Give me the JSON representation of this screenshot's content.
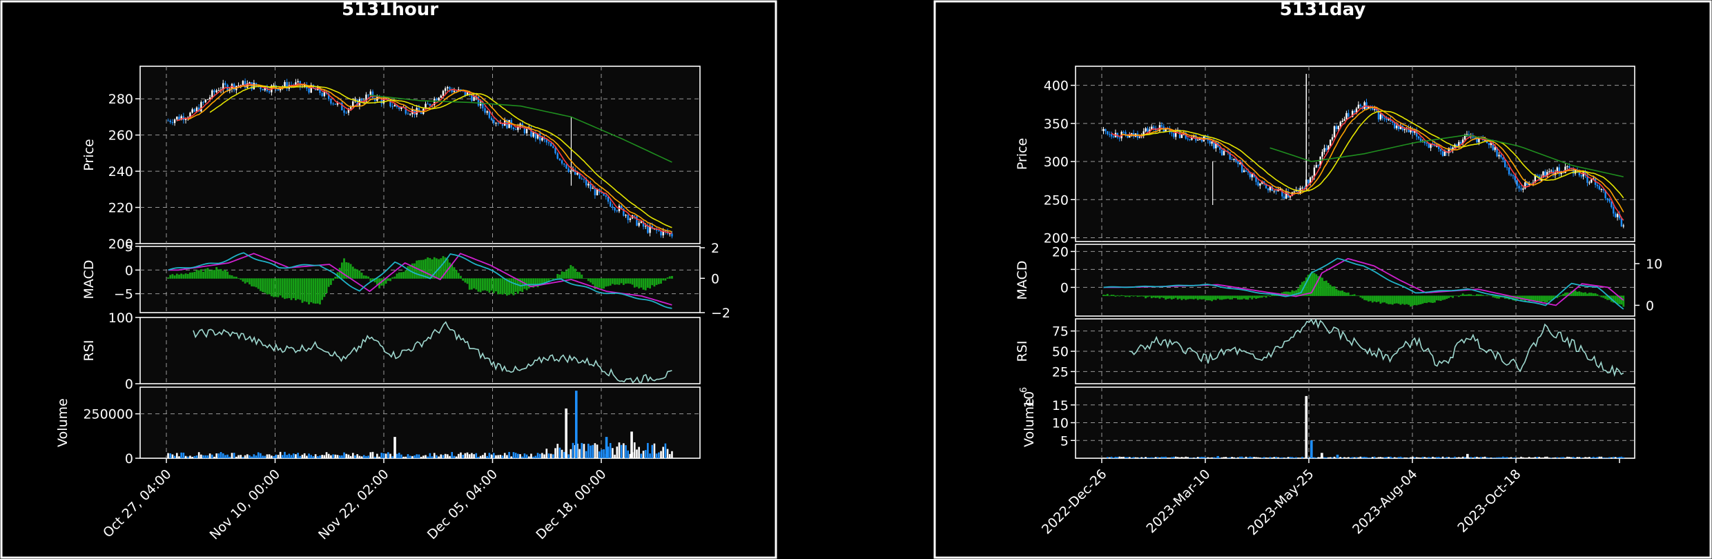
{
  "colors": {
    "background": "#000000",
    "panel_face": "#0a0a0a",
    "frame": "#ffffff",
    "grid": "#9a9a9a",
    "text": "#ffffff",
    "candle_up": "#ffffff",
    "candle_down": "#1e90ff",
    "ma_fast": "#ff3b3b",
    "ma_mid": "#ffa500",
    "ma_slow": "#e6e600",
    "ma_long": "#1f8f1f",
    "macd_line": "#20b2c8",
    "signal_line": "#d020d0",
    "histogram": "#16a016",
    "rsi_line": "#9fd9d0"
  },
  "chart_data": [
    {
      "type": "candlestick",
      "title": "5131hour",
      "ylabels": {
        "price": "Price",
        "macd": "MACD",
        "rsi": "RSI",
        "volume": "Volume"
      },
      "xticks": [
        "Oct 27, 04:00",
        "Nov 10, 00:00",
        "Nov 22, 02:00",
        "Dec 05, 04:00",
        "Dec 18, 00:00"
      ],
      "price_ylim": [
        200,
        298
      ],
      "price_ticks": [
        200,
        220,
        240,
        260,
        280
      ],
      "macd_ylim": [
        -9,
        5
      ],
      "macd_ticks": [
        -5,
        0,
        5
      ],
      "hist_right_ticks": [
        -2,
        0,
        2
      ],
      "rsi_ylim": [
        0,
        100
      ],
      "rsi_ticks": [
        0,
        100
      ],
      "volume_ylim": [
        0,
        400000
      ],
      "volume_ticks": [
        0,
        250000
      ],
      "volume_tick_labels": [
        "0",
        "250000"
      ],
      "close_path": {
        "x": [
          0,
          0.05,
          0.1,
          0.15,
          0.2,
          0.25,
          0.3,
          0.35,
          0.4,
          0.45,
          0.5,
          0.55,
          0.6,
          0.65,
          0.7,
          0.75,
          0.8,
          0.85,
          0.9,
          0.95,
          1.0
        ],
        "y": [
          268,
          272,
          286,
          288,
          286,
          288,
          284,
          274,
          282,
          276,
          272,
          286,
          282,
          268,
          264,
          256,
          240,
          228,
          218,
          208,
          205
        ]
      },
      "long_ma": {
        "x": [
          0.4,
          0.5,
          0.6,
          0.7,
          0.8,
          0.9,
          1.0
        ],
        "y": [
          282,
          279,
          278,
          276,
          270,
          258,
          245
        ]
      },
      "rsi_path": {
        "x": [
          0.05,
          0.1,
          0.15,
          0.2,
          0.25,
          0.3,
          0.35,
          0.4,
          0.45,
          0.5,
          0.55,
          0.6,
          0.65,
          0.7,
          0.75,
          0.8,
          0.85,
          0.9,
          0.95,
          1.0
        ],
        "y": [
          75,
          78,
          72,
          55,
          52,
          58,
          35,
          70,
          42,
          60,
          88,
          55,
          28,
          18,
          40,
          38,
          30,
          5,
          8,
          14
        ]
      },
      "macd_path": {
        "x": [
          0,
          0.1,
          0.15,
          0.22,
          0.3,
          0.38,
          0.45,
          0.52,
          0.56,
          0.62,
          0.7,
          0.78,
          0.85,
          0.92,
          1.0
        ],
        "y": [
          0,
          1.5,
          3.5,
          0.5,
          1.2,
          -4.5,
          1.5,
          -2.0,
          3.5,
          1.0,
          -3.5,
          -2.0,
          -4.5,
          -5.5,
          -8.0
        ]
      },
      "hist_path": {
        "x": [
          0,
          0.1,
          0.2,
          0.3,
          0.35,
          0.42,
          0.5,
          0.55,
          0.6,
          0.68,
          0.75,
          0.8,
          0.85,
          0.9,
          0.95,
          1.0
        ],
        "y": [
          0.2,
          1.0,
          -1.5,
          -2.5,
          1.8,
          -0.8,
          1.8,
          2.0,
          -1.0,
          -1.5,
          -0.5,
          1.2,
          -1.0,
          -0.4,
          -1.0,
          0.2
        ]
      },
      "volume_spikes": [
        {
          "x": 0.79,
          "value": 280000
        },
        {
          "x": 0.81,
          "value": 380000
        },
        {
          "x": 0.45,
          "value": 120000
        },
        {
          "x": 0.87,
          "value": 120000
        },
        {
          "x": 0.92,
          "value": 150000
        }
      ],
      "volume_base": 20000
    },
    {
      "type": "candlestick",
      "title": "5131day",
      "ylabels": {
        "price": "Price",
        "macd": "MACD",
        "rsi": "RSI",
        "volume": "Volume"
      },
      "volume_multiplier": "10",
      "volume_multiplier_exp": "6",
      "xticks": [
        "2022-Dec-26",
        "2023-Mar-10",
        "2023-May-25",
        "2023-Aug-04",
        "2023-Oct-18"
      ],
      "price_ylim": [
        195,
        425
      ],
      "price_ticks": [
        200,
        250,
        300,
        350,
        400
      ],
      "macd_ylim": [
        -16,
        24
      ],
      "macd_ticks": [
        0,
        10,
        20
      ],
      "macd_tick_labels": [
        "0",
        "",
        "20"
      ],
      "hist_right_ticks": [
        0,
        10
      ],
      "rsi_ylim": [
        10,
        90
      ],
      "rsi_ticks": [
        25,
        50,
        75
      ],
      "volume_ylim": [
        0,
        20
      ],
      "volume_ticks": [
        5,
        10,
        15
      ],
      "close_path": {
        "x": [
          0,
          0.05,
          0.1,
          0.15,
          0.2,
          0.25,
          0.3,
          0.35,
          0.38,
          0.4,
          0.45,
          0.5,
          0.55,
          0.6,
          0.65,
          0.7,
          0.75,
          0.8,
          0.85,
          0.9,
          0.95,
          1.0
        ],
        "y": [
          340,
          332,
          345,
          335,
          330,
          300,
          270,
          255,
          262,
          280,
          350,
          375,
          350,
          335,
          310,
          335,
          320,
          265,
          285,
          290,
          270,
          215
        ]
      },
      "long_ma": {
        "x": [
          0.32,
          0.4,
          0.5,
          0.6,
          0.7,
          0.8,
          0.9,
          1.0
        ],
        "y": [
          318,
          300,
          310,
          325,
          335,
          320,
          295,
          280
        ]
      },
      "rsi_path": {
        "x": [
          0.05,
          0.1,
          0.15,
          0.2,
          0.25,
          0.3,
          0.35,
          0.38,
          0.4,
          0.45,
          0.5,
          0.55,
          0.6,
          0.65,
          0.7,
          0.75,
          0.8,
          0.85,
          0.9,
          0.95,
          1.0
        ],
        "y": [
          45,
          62,
          55,
          40,
          52,
          38,
          60,
          75,
          88,
          72,
          55,
          42,
          65,
          30,
          70,
          48,
          30,
          80,
          60,
          35,
          20
        ]
      },
      "macd_path": {
        "x": [
          0,
          0.1,
          0.2,
          0.3,
          0.35,
          0.38,
          0.4,
          0.45,
          0.5,
          0.55,
          0.6,
          0.7,
          0.78,
          0.85,
          0.9,
          0.95,
          1.0
        ],
        "y": [
          0,
          0.5,
          1.5,
          -3.0,
          -5.0,
          -3.0,
          8.0,
          16.0,
          12.0,
          4.0,
          -3.0,
          -1.0,
          -6.0,
          -10.0,
          2.0,
          0.0,
          -12.0
        ]
      },
      "hist_path": {
        "x": [
          0,
          0.1,
          0.2,
          0.3,
          0.37,
          0.4,
          0.45,
          0.52,
          0.6,
          0.7,
          0.78,
          0.85,
          0.9,
          0.95,
          1.0
        ],
        "y": [
          0.5,
          -1.0,
          -2.0,
          -1.0,
          2.5,
          12.0,
          3.0,
          -3.0,
          -5.0,
          1.0,
          -1.5,
          -3.0,
          2.5,
          0.5,
          -5.0
        ]
      },
      "volume_spikes": [
        {
          "x": 0.39,
          "value": 17.5
        },
        {
          "x": 0.4,
          "value": 5.0
        },
        {
          "x": 0.42,
          "value": 1.5
        },
        {
          "x": 0.45,
          "value": 1.0
        },
        {
          "x": 0.7,
          "value": 1.2
        },
        {
          "x": 0.22,
          "value": 0.6
        }
      ],
      "volume_base": 0.25
    }
  ]
}
